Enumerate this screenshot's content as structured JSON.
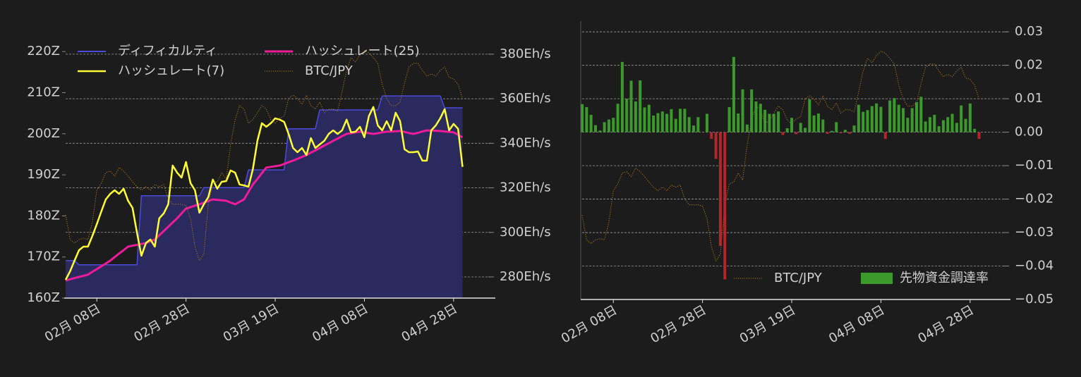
{
  "chart_data": [
    {
      "type": "line",
      "categories": [
        null,
        null,
        null,
        null,
        null,
        null,
        null,
        "02月 08日",
        null,
        null,
        null,
        null,
        null,
        null,
        null,
        null,
        null,
        null,
        null,
        null,
        null,
        null,
        null,
        null,
        null,
        null,
        null,
        "02月 28日",
        null,
        null,
        null,
        null,
        null,
        null,
        null,
        null,
        null,
        null,
        null,
        null,
        null,
        null,
        null,
        null,
        null,
        null,
        null,
        "03月 19日",
        null,
        null,
        null,
        null,
        null,
        null,
        null,
        null,
        null,
        null,
        null,
        null,
        null,
        null,
        null,
        null,
        null,
        null,
        null,
        "04月 08日",
        null,
        null,
        null,
        null,
        null,
        null,
        null,
        null,
        null,
        null,
        null,
        null,
        null,
        null,
        null,
        null,
        null,
        null,
        null,
        "04月 28日",
        null,
        null
      ],
      "ylim": [
        160,
        225
      ],
      "yticks": [
        {
          "value": 160,
          "label": "160Z"
        },
        {
          "value": 170,
          "label": "170Z"
        },
        {
          "value": 180,
          "label": "180Z"
        },
        {
          "value": 190,
          "label": "190Z"
        },
        {
          "value": 200,
          "label": "200Z"
        },
        {
          "value": 210,
          "label": "210Z"
        },
        {
          "value": 220,
          "label": "220Z"
        }
      ],
      "y2lim": [
        270.5,
        390.4
      ],
      "y2ticks": [
        {
          "value": 280,
          "label": "280Eh/s"
        },
        {
          "value": 300,
          "label": "300Eh/s"
        },
        {
          "value": 320,
          "label": "320Eh/s"
        },
        {
          "value": 340,
          "label": "340Eh/s"
        },
        {
          "value": 360,
          "label": "360Eh/s"
        },
        {
          "value": 380,
          "label": "380Eh/s"
        }
      ],
      "grid": "y2",
      "legend_loc": "upper left",
      "series": [
        {
          "name": "ディフィカルティ",
          "kind": "area",
          "color": "#4b4bdc",
          "fill": "#2a2a5e",
          "values": [
            169.1,
            169.1,
            169.1,
            168.1,
            168.1,
            168.1,
            168.1,
            168.1,
            168.1,
            168.1,
            168.1,
            168.1,
            168.1,
            168.1,
            168.1,
            168.1,
            168.1,
            184.9,
            184.9,
            184.9,
            184.9,
            184.9,
            184.9,
            184.9,
            184.9,
            184.9,
            184.9,
            184.9,
            184.9,
            184.9,
            184.9,
            186.9,
            186.9,
            186.9,
            186.9,
            186.9,
            186.9,
            186.9,
            186.9,
            186.9,
            186.9,
            191.2,
            191.2,
            191.2,
            191.2,
            191.2,
            191.2,
            191.2,
            191.2,
            191.2,
            201.2,
            201.2,
            201.2,
            201.2,
            201.2,
            201.2,
            201.2,
            205.8,
            205.8,
            205.8,
            205.8,
            205.8,
            205.8,
            205.8,
            205.8,
            205.8,
            205.8,
            205.8,
            205.8,
            205.8,
            205.8,
            209.2,
            209.2,
            209.2,
            209.2,
            209.2,
            209.2,
            209.2,
            209.2,
            209.2,
            209.2,
            209.2,
            209.2,
            209.2,
            209.2,
            206.3,
            206.3,
            206.3,
            206.3,
            206.3
          ]
        },
        {
          "name": "ハッシュレート(25)",
          "kind": "line",
          "axis": "y2",
          "color": "#ee1b9a",
          "width": 3,
          "values": [
            278.4,
            278.9,
            279.5,
            280.0,
            280.5,
            281.0,
            282.3,
            283.5,
            284.8,
            286.0,
            287.3,
            288.9,
            290.5,
            292.0,
            293.6,
            294.0,
            294.4,
            294.8,
            295.2,
            296.0,
            296.8,
            298.7,
            300.6,
            302.5,
            304.4,
            306.3,
            308.5,
            310.7,
            311.3,
            312.0,
            312.6,
            313.3,
            314.1,
            314.8,
            314.6,
            314.4,
            314.2,
            313.4,
            312.6,
            313.7,
            314.8,
            318.2,
            321.5,
            324.0,
            326.6,
            329.1,
            329.4,
            329.7,
            330.0,
            330.7,
            331.5,
            332.2,
            333.0,
            333.9,
            334.7,
            335.8,
            336.8,
            337.9,
            339.0,
            340.0,
            341.1,
            342.1,
            343.2,
            344.2,
            344.5,
            344.9,
            345.2,
            344.9,
            344.5,
            344.2,
            344.5,
            344.9,
            345.2,
            345.3,
            345.4,
            345.5,
            345.1,
            344.6,
            344.2,
            344.7,
            345.3,
            345.8,
            345.7,
            345.6,
            345.5,
            345.3,
            345.1,
            344.9,
            343.8,
            342.7
          ]
        },
        {
          "name": "ハッシュレート(7)",
          "kind": "line",
          "axis": "y2",
          "color": "#ffff33",
          "width": 2.5,
          "values": [
            278.7,
            282.5,
            287.3,
            292.0,
            293.6,
            293.6,
            298.4,
            303.7,
            309.4,
            314.8,
            317.3,
            318.9,
            317.3,
            319.6,
            314.2,
            311.0,
            299.9,
            289.5,
            295.2,
            296.8,
            293.6,
            306.3,
            308.5,
            312.6,
            330.0,
            326.8,
            324.6,
            331.6,
            322.1,
            318.9,
            308.8,
            312.6,
            315.8,
            323.7,
            319.6,
            322.7,
            323.0,
            327.8,
            326.8,
            321.5,
            321.1,
            320.5,
            328.4,
            341.1,
            349.0,
            347.4,
            349.0,
            351.2,
            350.6,
            349.6,
            344.2,
            337.9,
            336.0,
            337.9,
            334.7,
            342.3,
            337.9,
            339.5,
            341.1,
            344.2,
            345.8,
            344.2,
            345.8,
            350.6,
            344.9,
            345.2,
            347.4,
            342.7,
            352.2,
            356.3,
            348.0,
            345.8,
            349.9,
            345.8,
            353.7,
            349.9,
            337.3,
            336.0,
            336.0,
            336.3,
            332.2,
            332.2,
            345.8,
            348.0,
            351.2,
            355.3,
            345.8,
            348.7,
            346.5,
            329.4
          ]
        },
        {
          "name": "BTC/JPY",
          "kind": "line",
          "axis": "y2",
          "color": "#b07a1a",
          "width": 1,
          "style": "dotted",
          "values": [
            307.8,
            296.8,
            295.2,
            296.8,
            297.4,
            296.8,
            304.7,
            318.9,
            322.1,
            326.8,
            327.5,
            325.3,
            329.1,
            327.5,
            325.3,
            322.7,
            320.5,
            318.9,
            320.5,
            318.9,
            321.5,
            320.5,
            321.5,
            315.1,
            312.6,
            312.6,
            312.6,
            312.0,
            306.3,
            293.6,
            287.3,
            290.4,
            312.6,
            322.1,
            322.7,
            326.8,
            323.7,
            339.5,
            350.6,
            356.9,
            355.3,
            349.0,
            350.6,
            353.7,
            356.9,
            355.3,
            350.6,
            349.0,
            351.2,
            352.2,
            360.1,
            361.6,
            360.1,
            357.5,
            361.6,
            356.9,
            355.3,
            358.5,
            353.7,
            355.3,
            355.3,
            354.4,
            363.2,
            372.7,
            378.4,
            376.5,
            379.7,
            381.6,
            380.6,
            378.4,
            375.9,
            366.4,
            360.1,
            356.9,
            356.9,
            358.5,
            367.0,
            374.3,
            375.9,
            375.9,
            372.7,
            370.2,
            371.1,
            370.2,
            372.7,
            374.3,
            369.6,
            368.9,
            366.4,
            360.1
          ]
        }
      ]
    },
    {
      "type": "bar",
      "categories": [
        null,
        null,
        null,
        null,
        null,
        null,
        null,
        "02月 08日",
        null,
        null,
        null,
        null,
        null,
        null,
        null,
        null,
        null,
        null,
        null,
        null,
        null,
        null,
        null,
        null,
        null,
        null,
        null,
        "02月 28日",
        null,
        null,
        null,
        null,
        null,
        null,
        null,
        null,
        null,
        null,
        null,
        null,
        null,
        null,
        null,
        null,
        null,
        null,
        null,
        "03月 19日",
        null,
        null,
        null,
        null,
        null,
        null,
        null,
        null,
        null,
        null,
        null,
        null,
        null,
        null,
        null,
        null,
        null,
        null,
        null,
        "04月 08日",
        null,
        null,
        null,
        null,
        null,
        null,
        null,
        null,
        null,
        null,
        null,
        null,
        null,
        null,
        null,
        null,
        null,
        null,
        null,
        "04月 28日",
        null,
        null
      ],
      "ylim": [
        -0.05,
        0.0332
      ],
      "yticks": [
        {
          "value": -0.05,
          "label": "−0.05"
        },
        {
          "value": -0.04,
          "label": "−0.04"
        },
        {
          "value": -0.03,
          "label": "−0.03"
        },
        {
          "value": -0.02,
          "label": "−0.02"
        },
        {
          "value": -0.01,
          "label": "−0.01"
        },
        {
          "value": 0,
          "label": "0.00"
        },
        0.01,
        0.02,
        0.03
      ],
      "y_axis_side": "right",
      "grid": "y",
      "legend_loc": "lower right",
      "series": [
        {
          "name": "BTC/JPY",
          "kind": "line",
          "color": "#b07a1a",
          "width": 1,
          "style": "dotted",
          "values": [
            -0.0248,
            -0.0322,
            -0.0333,
            -0.0322,
            -0.0318,
            -0.0322,
            -0.0269,
            -0.0175,
            -0.0154,
            -0.0122,
            -0.0118,
            -0.0133,
            -0.0107,
            -0.0118,
            -0.0133,
            -0.0149,
            -0.0164,
            -0.0175,
            -0.0164,
            -0.0175,
            -0.0158,
            -0.0164,
            -0.0158,
            -0.02,
            -0.0217,
            -0.0217,
            -0.0217,
            -0.0221,
            -0.0259,
            -0.0343,
            -0.0385,
            -0.0364,
            -0.0217,
            -0.0154,
            -0.0149,
            -0.0122,
            -0.0143,
            -0.0038,
            0.0036,
            0.0078,
            0.0067,
            0.0025,
            0.0036,
            0.0057,
            0.0078,
            0.0067,
            0.0036,
            0.0025,
            0.004,
            0.0046,
            0.0099,
            0.0109,
            0.0099,
            0.0082,
            0.0109,
            0.0078,
            0.0067,
            0.0088,
            0.0057,
            0.0067,
            0.0067,
            0.0061,
            0.012,
            0.0183,
            0.0221,
            0.0208,
            0.0229,
            0.0242,
            0.0236,
            0.0221,
            0.0204,
            0.0141,
            0.0099,
            0.0078,
            0.0078,
            0.0088,
            0.0145,
            0.0194,
            0.0204,
            0.0204,
            0.0183,
            0.0166,
            0.0173,
            0.0166,
            0.0183,
            0.0194,
            0.0162,
            0.0158,
            0.0141,
            0.0099
          ]
        },
        {
          "name": "先物資金調達率",
          "kind": "bar",
          "color": "#3c9a2c",
          "negative_color": "#b3262b",
          "values": [
            0.0084,
            0.0075,
            0.0052,
            0.0021,
            0.0005,
            0.003,
            0.0038,
            0.0043,
            0.0085,
            0.021,
            0.01,
            0.0154,
            0.0092,
            0.0155,
            0.0074,
            0.0082,
            0.005,
            0.0057,
            0.0062,
            0.0055,
            0.0069,
            0.004,
            0.007,
            0.007,
            0.0045,
            0.002,
            0.0045,
            0,
            0.0055,
            -0.002,
            -0.008,
            -0.034,
            -0.044,
            0.0075,
            0.0225,
            0.0056,
            0.0128,
            0.0023,
            0.0128,
            0.0092,
            0.0085,
            0.0067,
            0.0055,
            0.0055,
            0.0062,
            -0.0008,
            0.0012,
            0.0043,
            -0.0006,
            0.0028,
            0.0013,
            0.0098,
            0.005,
            0.0056,
            0.0038,
            -0.0005,
            0.0004,
            0.003,
            -0.0003,
            0.0007,
            -0.0005,
            0.002,
            0.0082,
            0.0061,
            0.0066,
            0.0078,
            0.0086,
            0.0076,
            -0.002,
            0.0095,
            0.0102,
            0.0082,
            0.0072,
            0.0043,
            0.0072,
            0.009,
            0.0106,
            0.0032,
            0.0045,
            0.0052,
            0.0018,
            0.0036,
            0.0045,
            0.0055,
            0.0028,
            0.008,
            0.004,
            0.0086,
            0.001,
            -0.002
          ]
        }
      ]
    }
  ]
}
